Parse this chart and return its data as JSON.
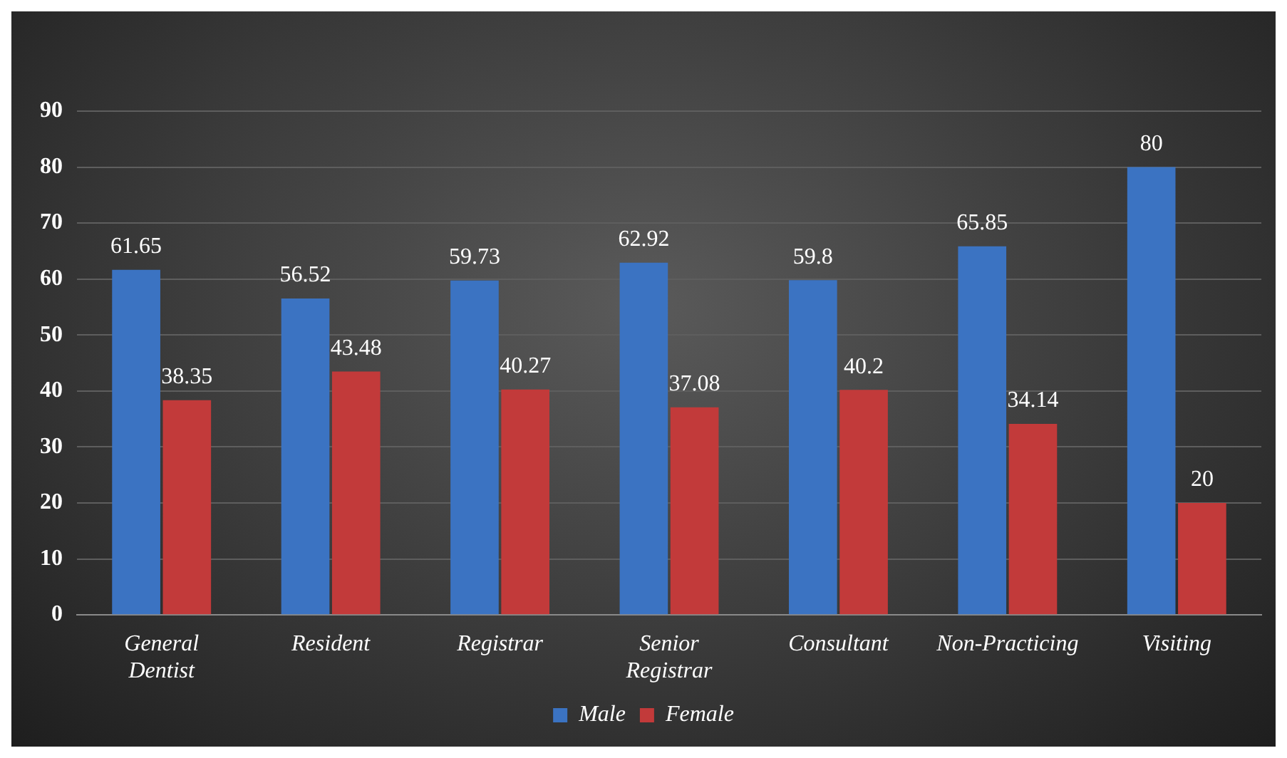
{
  "chart_data": {
    "type": "bar",
    "categories": [
      "General Dentist",
      "Resident",
      "Registrar",
      "Senior Registrar",
      "Consultant",
      "Non-Practicing",
      "Visiting"
    ],
    "series": [
      {
        "name": "Male",
        "color": "#3b73c2",
        "values": [
          61.65,
          56.52,
          59.73,
          62.92,
          59.8,
          65.85,
          80
        ]
      },
      {
        "name": "Female",
        "color": "#c23a3a",
        "values": [
          38.35,
          43.48,
          40.27,
          37.08,
          40.2,
          34.14,
          20
        ]
      }
    ],
    "ylim": [
      0,
      90
    ],
    "yticks": [
      0,
      10,
      20,
      30,
      40,
      50,
      60,
      70,
      80,
      90
    ],
    "grid": "y",
    "legend": "bottom",
    "data_labels": true
  }
}
